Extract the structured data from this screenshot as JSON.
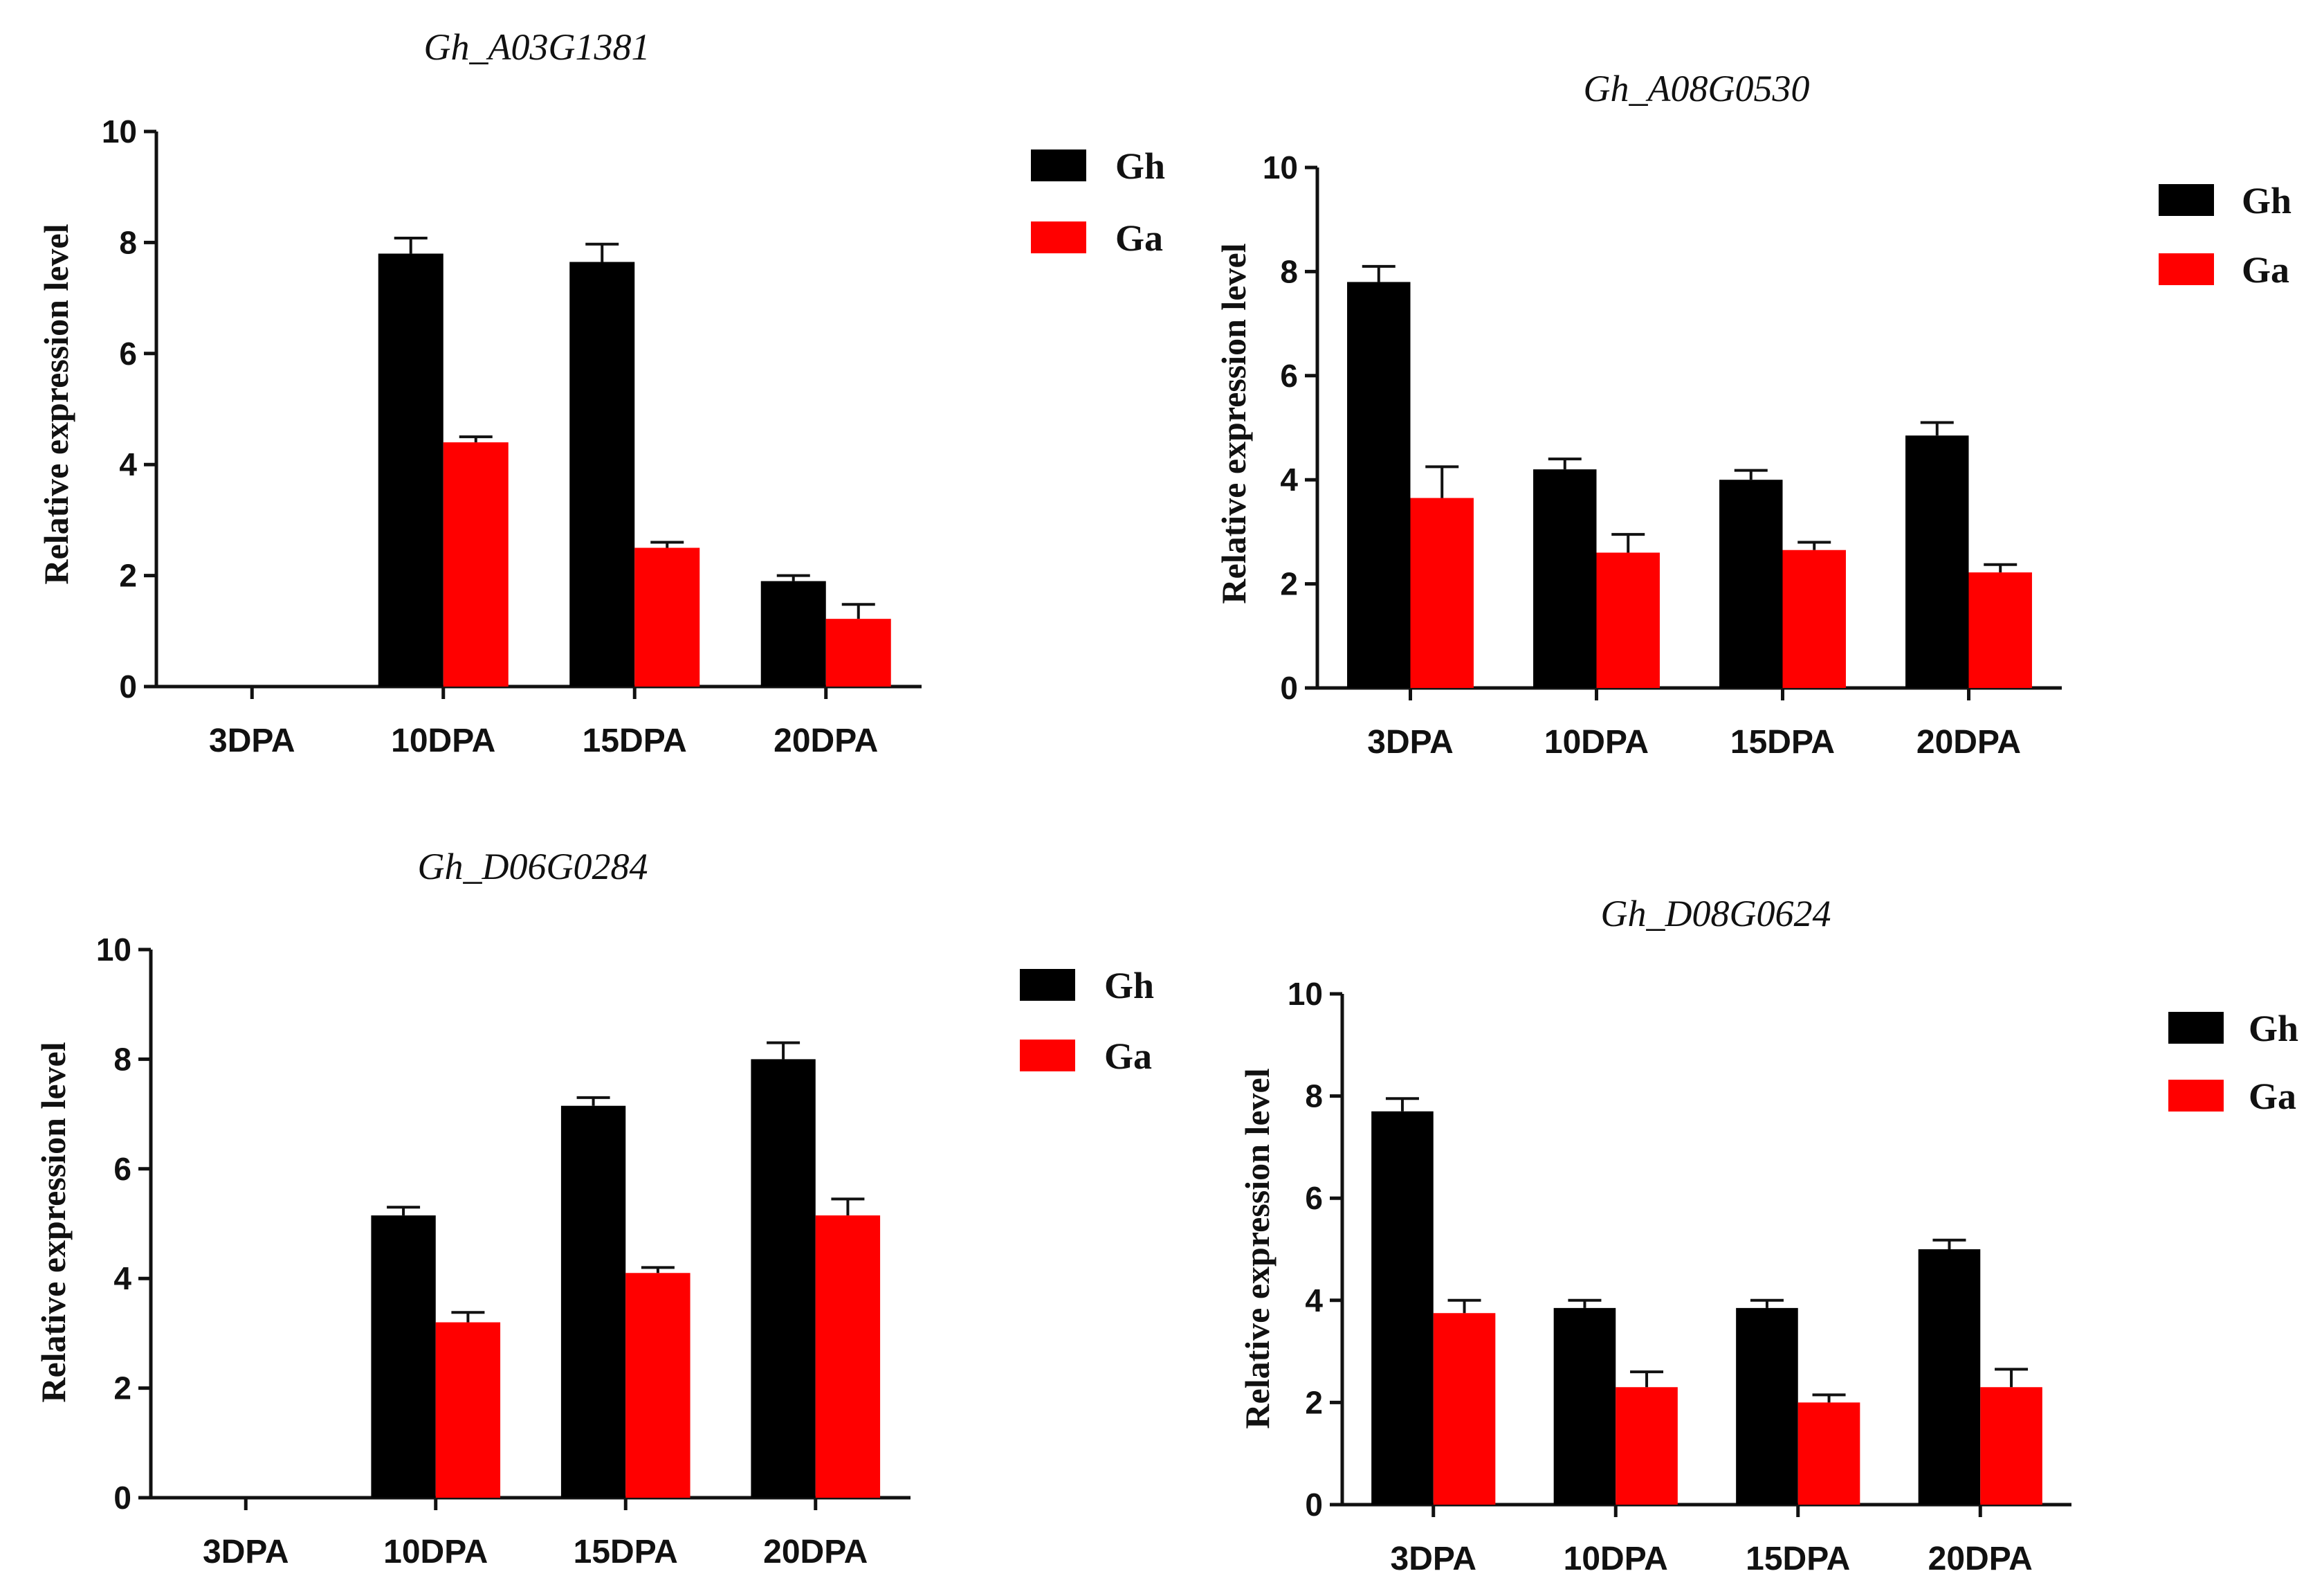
{
  "colors": {
    "Gh": "#000000",
    "Ga": "#ff0000",
    "axis": "#111111",
    "background": "#ffffff"
  },
  "chart_data": [
    {
      "type": "bar",
      "title": "Gh_A03G1381",
      "ylabel": "Relative expression level",
      "xlabel": "",
      "ylim": [
        0,
        10
      ],
      "yticks": [
        0,
        2,
        4,
        6,
        8,
        10
      ],
      "categories": [
        "3DPA",
        "10DPA",
        "15DPA",
        "20DPA"
      ],
      "legend_position": "right",
      "series": [
        {
          "name": "Gh",
          "color": "#000000",
          "values": [
            0,
            7.8,
            7.65,
            1.9
          ],
          "errors": [
            0,
            0.28,
            0.32,
            0.1
          ]
        },
        {
          "name": "Ga",
          "color": "#ff0000",
          "values": [
            0,
            4.4,
            2.5,
            1.22
          ],
          "errors": [
            0,
            0.1,
            0.1,
            0.26
          ]
        }
      ]
    },
    {
      "type": "bar",
      "title": "Gh_A08G0530",
      "ylabel": "Relative expression level",
      "xlabel": "",
      "ylim": [
        0,
        10
      ],
      "yticks": [
        0,
        2,
        4,
        6,
        8,
        10
      ],
      "categories": [
        "3DPA",
        "10DPA",
        "15DPA",
        "20DPA"
      ],
      "legend_position": "right",
      "series": [
        {
          "name": "Gh",
          "color": "#000000",
          "values": [
            7.8,
            4.2,
            4.0,
            4.85
          ],
          "errors": [
            0.3,
            0.2,
            0.18,
            0.25
          ]
        },
        {
          "name": "Ga",
          "color": "#ff0000",
          "values": [
            3.65,
            2.6,
            2.65,
            2.22
          ],
          "errors": [
            0.6,
            0.35,
            0.15,
            0.15
          ]
        }
      ]
    },
    {
      "type": "bar",
      "title": "Gh_D06G0284",
      "ylabel": "Relative expression level",
      "xlabel": "",
      "ylim": [
        0,
        10
      ],
      "yticks": [
        0,
        2,
        4,
        6,
        8,
        10
      ],
      "categories": [
        "3DPA",
        "10DPA",
        "15DPA",
        "20DPA"
      ],
      "legend_position": "right",
      "series": [
        {
          "name": "Gh",
          "color": "#000000",
          "values": [
            0,
            5.15,
            7.15,
            8.0
          ],
          "errors": [
            0,
            0.15,
            0.15,
            0.3
          ]
        },
        {
          "name": "Ga",
          "color": "#ff0000",
          "values": [
            0,
            3.2,
            4.1,
            5.15
          ],
          "errors": [
            0,
            0.18,
            0.1,
            0.3
          ]
        }
      ]
    },
    {
      "type": "bar",
      "title": "Gh_D08G0624",
      "ylabel": "Relative expression level",
      "xlabel": "",
      "ylim": [
        0,
        10
      ],
      "yticks": [
        0,
        2,
        4,
        6,
        8,
        10
      ],
      "categories": [
        "3DPA",
        "10DPA",
        "15DPA",
        "20DPA"
      ],
      "legend_position": "right",
      "series": [
        {
          "name": "Gh",
          "color": "#000000",
          "values": [
            7.7,
            3.85,
            3.85,
            5.0
          ],
          "errors": [
            0.25,
            0.15,
            0.15,
            0.18
          ]
        },
        {
          "name": "Ga",
          "color": "#ff0000",
          "values": [
            3.75,
            2.3,
            2.0,
            2.3
          ],
          "errors": [
            0.25,
            0.3,
            0.15,
            0.35
          ]
        }
      ]
    }
  ]
}
